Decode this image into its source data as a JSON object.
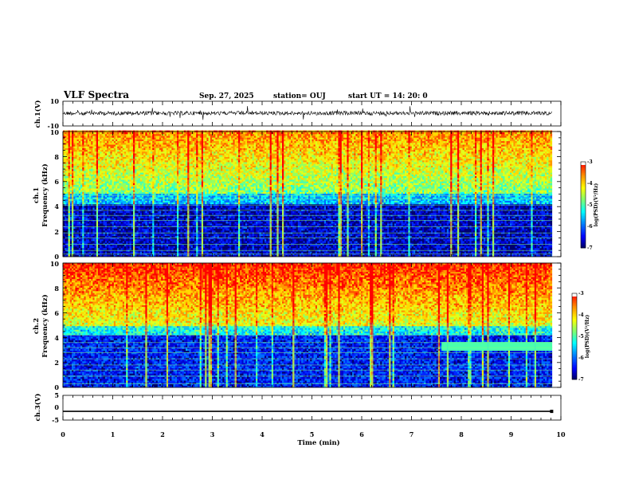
{
  "header": {
    "title": "VLF Spectra",
    "date": "Sep. 27, 2025",
    "station": "station= OUJ",
    "start": "start  UT  =   14: 20: 0"
  },
  "chart_data": {
    "type": "heatmap",
    "xlabel": "Time  (min)",
    "xlim": [
      0,
      10
    ],
    "xticks": [
      "0",
      "1",
      "2",
      "3",
      "4",
      "5",
      "6",
      "7",
      "8",
      "9",
      "10"
    ],
    "data_extent_min": 9.83,
    "panels": [
      {
        "id": "ch1",
        "kind": "waveform",
        "ylabel": "ch.1(V)",
        "ylim": [
          -10,
          10
        ],
        "yticks": [
          "10",
          "-10"
        ]
      },
      {
        "id": "ch1-spec",
        "kind": "spectrogram",
        "ylabel1": "ch.1",
        "ylabel2": "Frequency  (kHz)",
        "ylim": [
          0,
          10
        ],
        "yticks": [
          "0",
          "2",
          "4",
          "6",
          "8",
          "10"
        ],
        "colorbar": {
          "label": "log(PSD)(V²/Hz)",
          "range": [
            -7,
            -3
          ],
          "ticks": [
            "-3",
            "-4",
            "-5",
            "-6",
            "-7"
          ]
        },
        "bands_khz": [
          0.2,
          0.5,
          1.0,
          1.5,
          1.9,
          2.4,
          2.9,
          3.3,
          3.7,
          4.1,
          4.6,
          4.9
        ]
      },
      {
        "id": "ch2-spec",
        "kind": "spectrogram",
        "ylabel1": "ch.2",
        "ylabel2": "Frequency  (kHz)",
        "ylim": [
          0,
          10
        ],
        "yticks": [
          "0",
          "2",
          "4",
          "6",
          "8",
          "10"
        ],
        "colorbar": {
          "label": "log(PSD)(V²/Hz)",
          "range": [
            -7,
            -3
          ],
          "ticks": [
            "-3",
            "-4",
            "-5",
            "-6",
            "-7"
          ]
        },
        "bands_khz": [
          0.3,
          0.9,
          1.4,
          1.8,
          2.3,
          2.8,
          3.2,
          3.6,
          4.2,
          4.8
        ],
        "feature": {
          "t_start_min": 7.6,
          "t_end_min": 9.8,
          "f_khz": 3.3
        }
      },
      {
        "id": "ch3",
        "kind": "waveform",
        "ylabel": "ch.3(V)",
        "ylim": [
          -5,
          5
        ],
        "yticks": [
          "5",
          "0",
          "-5"
        ],
        "level_v": -1.5
      }
    ],
    "colors": {
      "scale": [
        "#000000",
        "#00007f",
        "#0000ff",
        "#0090ff",
        "#00ffff",
        "#7fff7f",
        "#ffff00",
        "#ff9000",
        "#ff0000",
        "#ffffff"
      ]
    }
  }
}
